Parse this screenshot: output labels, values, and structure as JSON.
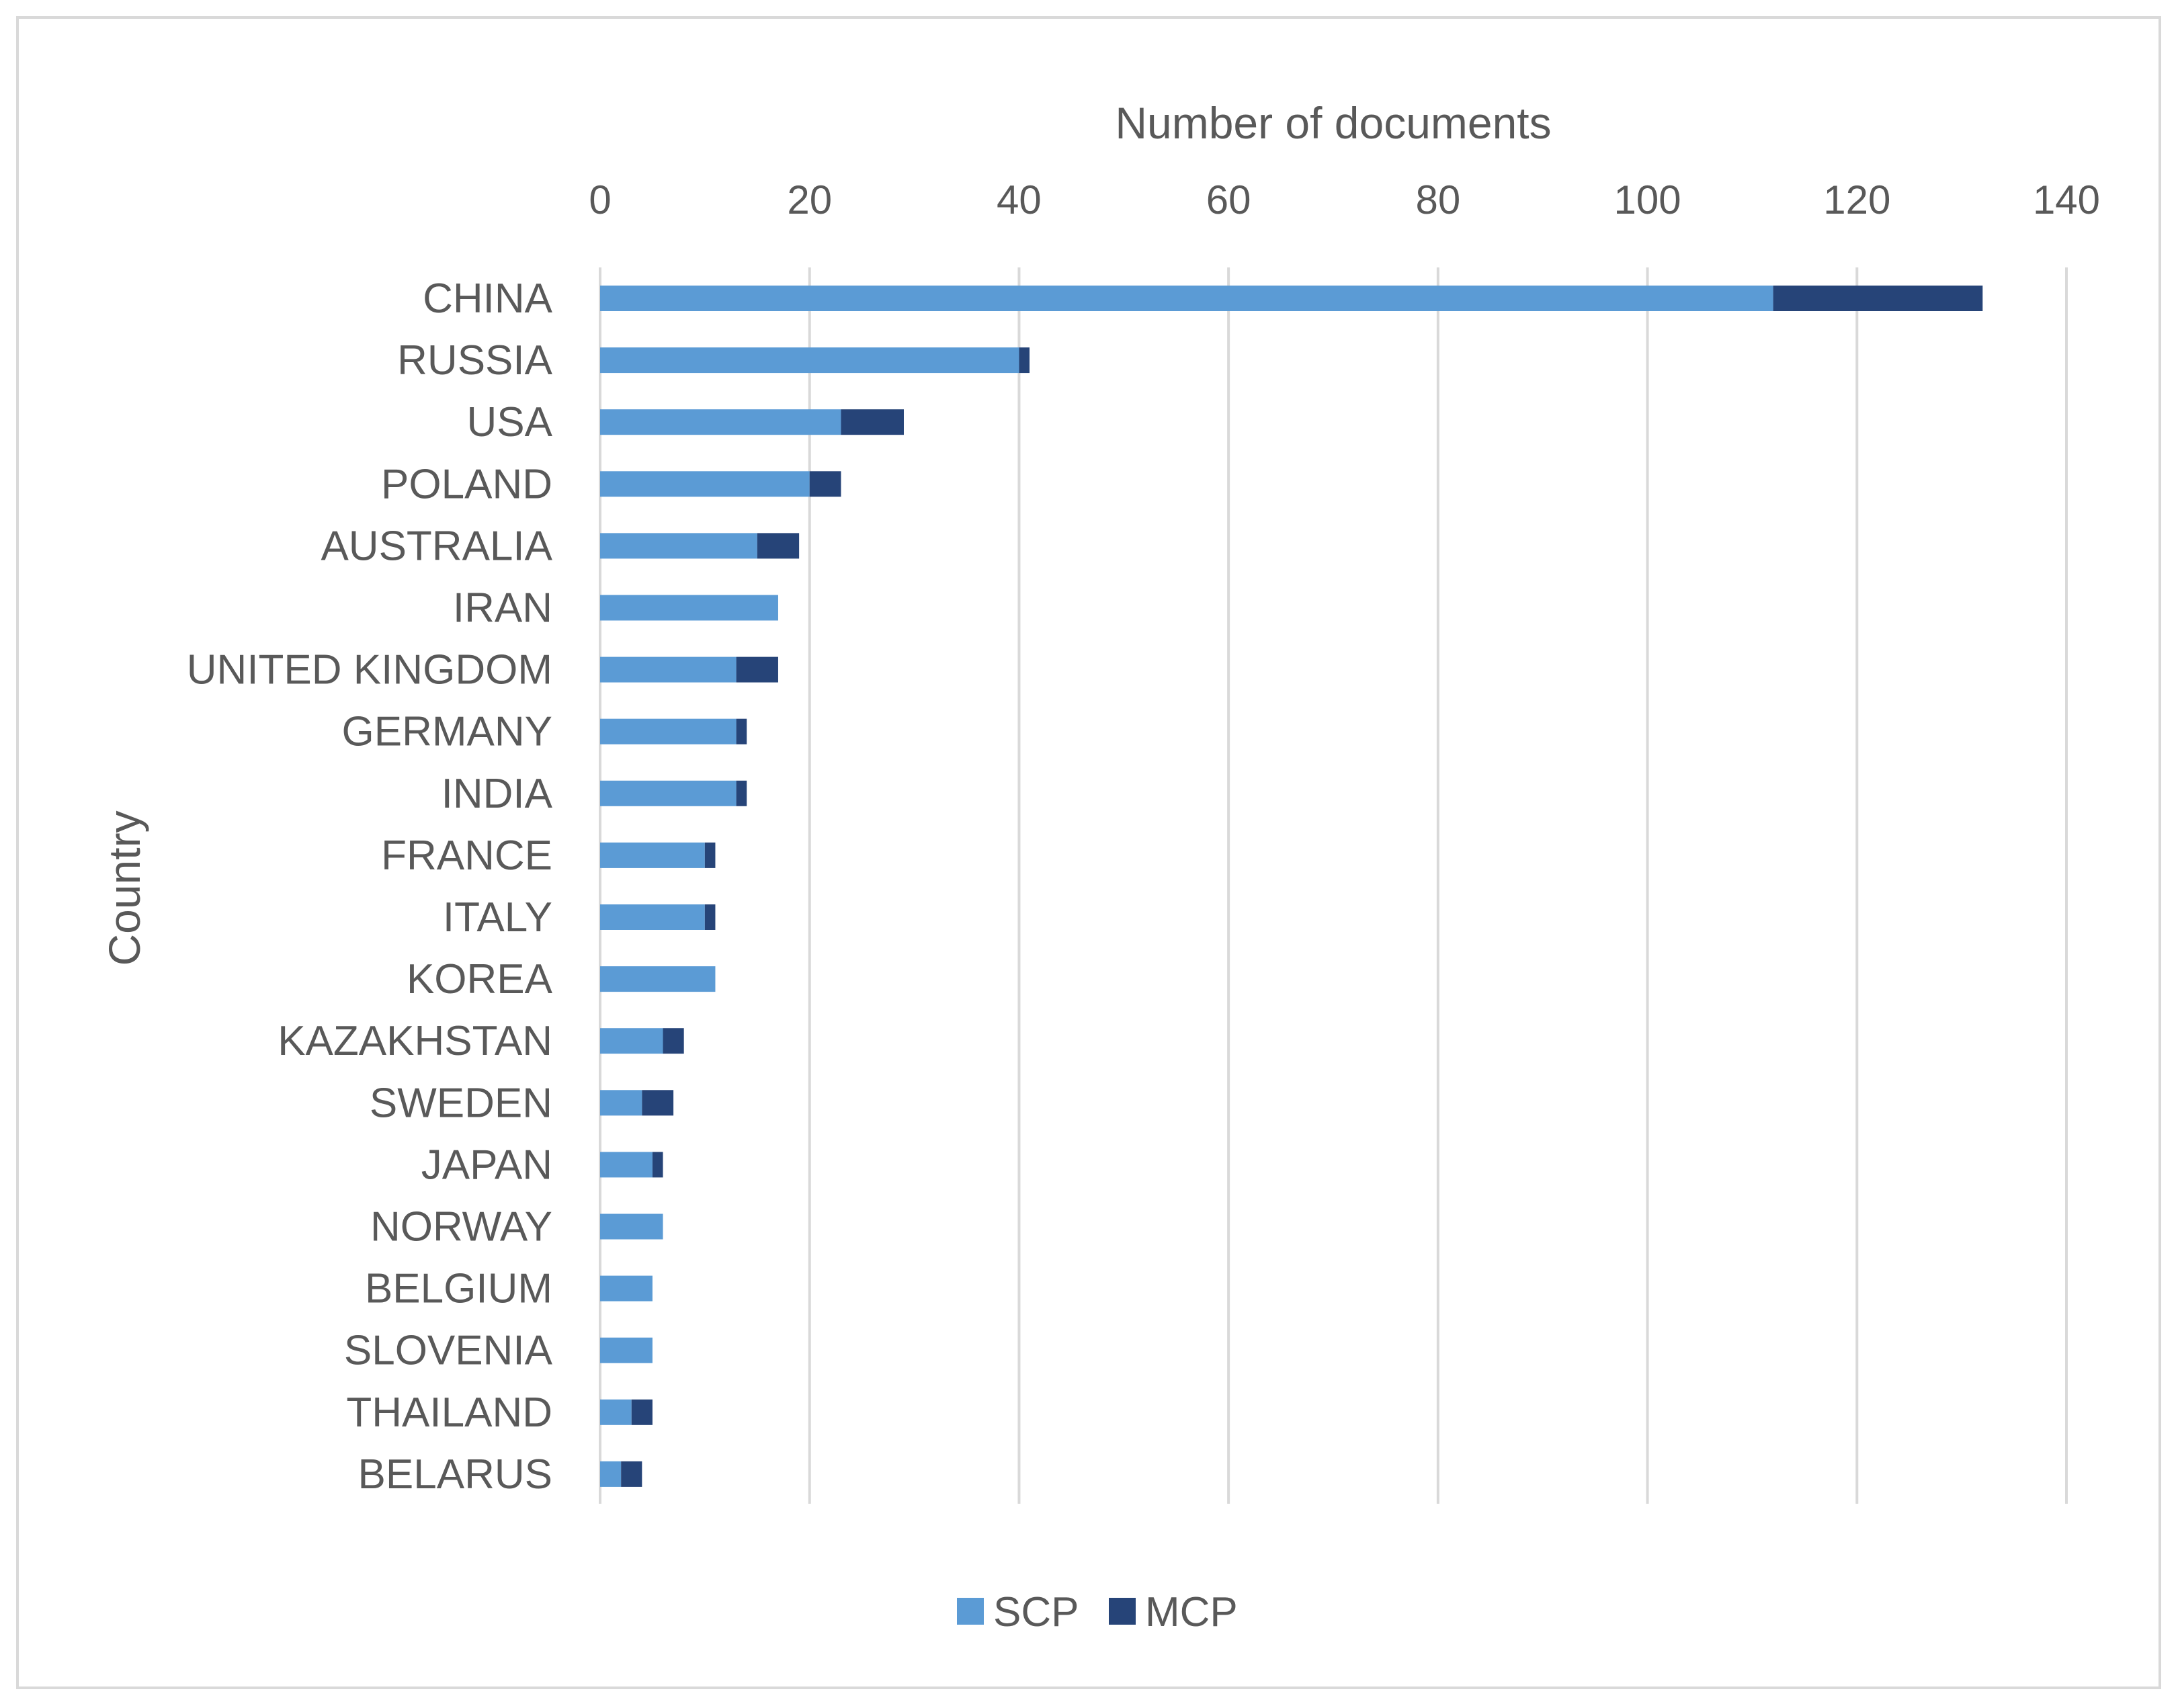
{
  "chart_data": {
    "type": "bar",
    "orientation": "horizontal",
    "stacked": true,
    "title": "",
    "xlabel": "Number of documents",
    "ylabel": "Country",
    "xlim": [
      0,
      140
    ],
    "x_ticks": [
      0,
      20,
      40,
      60,
      80,
      100,
      120,
      140
    ],
    "x_axis_position": "top",
    "grid": true,
    "legend_position": "bottom",
    "categories": [
      "CHINA",
      "RUSSIA",
      "USA",
      "POLAND",
      "AUSTRALIA",
      "IRAN",
      "UNITED KINGDOM",
      "GERMANY",
      "INDIA",
      "FRANCE",
      "ITALY",
      "KOREA",
      "KAZAKHSTAN",
      "SWEDEN",
      "JAPAN",
      "NORWAY",
      "BELGIUM",
      "SLOVENIA",
      "THAILAND",
      "BELARUS"
    ],
    "series": [
      {
        "name": "SCP",
        "color": "#5b9bd5",
        "values": [
          112,
          40,
          23,
          20,
          15,
          17,
          13,
          13,
          13,
          10,
          10,
          11,
          6,
          4,
          5,
          6,
          5,
          5,
          3,
          2
        ]
      },
      {
        "name": "MCP",
        "color": "#264478",
        "values": [
          20,
          1,
          6,
          3,
          4,
          0,
          4,
          1,
          1,
          1,
          1,
          0,
          2,
          3,
          1,
          0,
          0,
          0,
          2,
          2
        ]
      }
    ]
  }
}
